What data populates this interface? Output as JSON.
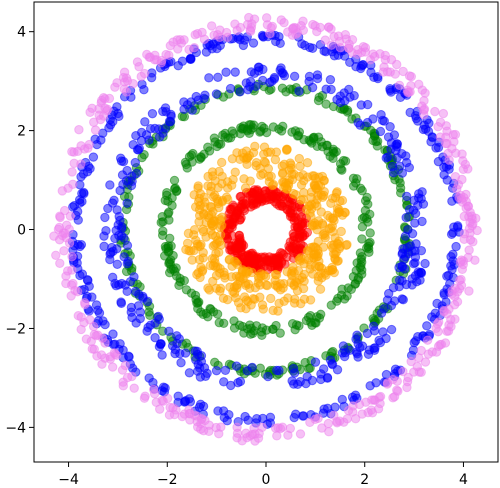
{
  "chart_data": {
    "type": "scatter",
    "title": "",
    "xlabel": "",
    "ylabel": "",
    "xlim": [
      -4.7,
      4.7
    ],
    "ylim": [
      -4.7,
      4.6
    ],
    "x_ticks": [
      -4,
      -2,
      0,
      2,
      4
    ],
    "y_ticks": [
      -4,
      -2,
      0,
      2,
      4
    ],
    "x_tick_labels": [
      "−4",
      "−2",
      "0",
      "2",
      "4"
    ],
    "y_tick_labels": [
      "−4",
      "−2",
      "0",
      "2",
      "4"
    ],
    "grid": false,
    "legend": "none",
    "marker_alpha": 0.5,
    "series": [
      {
        "color": "#ff0000",
        "ring_radius_min": 0.55,
        "ring_radius_max": 0.85,
        "n_points": 300
      },
      {
        "color": "#ffa500",
        "ring_radius_min": 0.9,
        "ring_radius_max": 1.7,
        "n_points": 420
      },
      {
        "color": "#008000",
        "ring_radius_min": 1.95,
        "ring_radius_max": 2.15,
        "n_points": 220
      },
      {
        "color": "#008000",
        "ring_radius_min": 2.8,
        "ring_radius_max": 2.95,
        "n_points": 200
      },
      {
        "color": "#0000ff",
        "ring_radius_min": 2.8,
        "ring_radius_max": 3.3,
        "n_points": 330
      },
      {
        "color": "#0000ff",
        "ring_radius_min": 3.75,
        "ring_radius_max": 3.95,
        "n_points": 300
      },
      {
        "color": "#ee82ee",
        "ring_radius_min": 3.95,
        "ring_radius_max": 4.3,
        "n_points": 420
      }
    ]
  }
}
